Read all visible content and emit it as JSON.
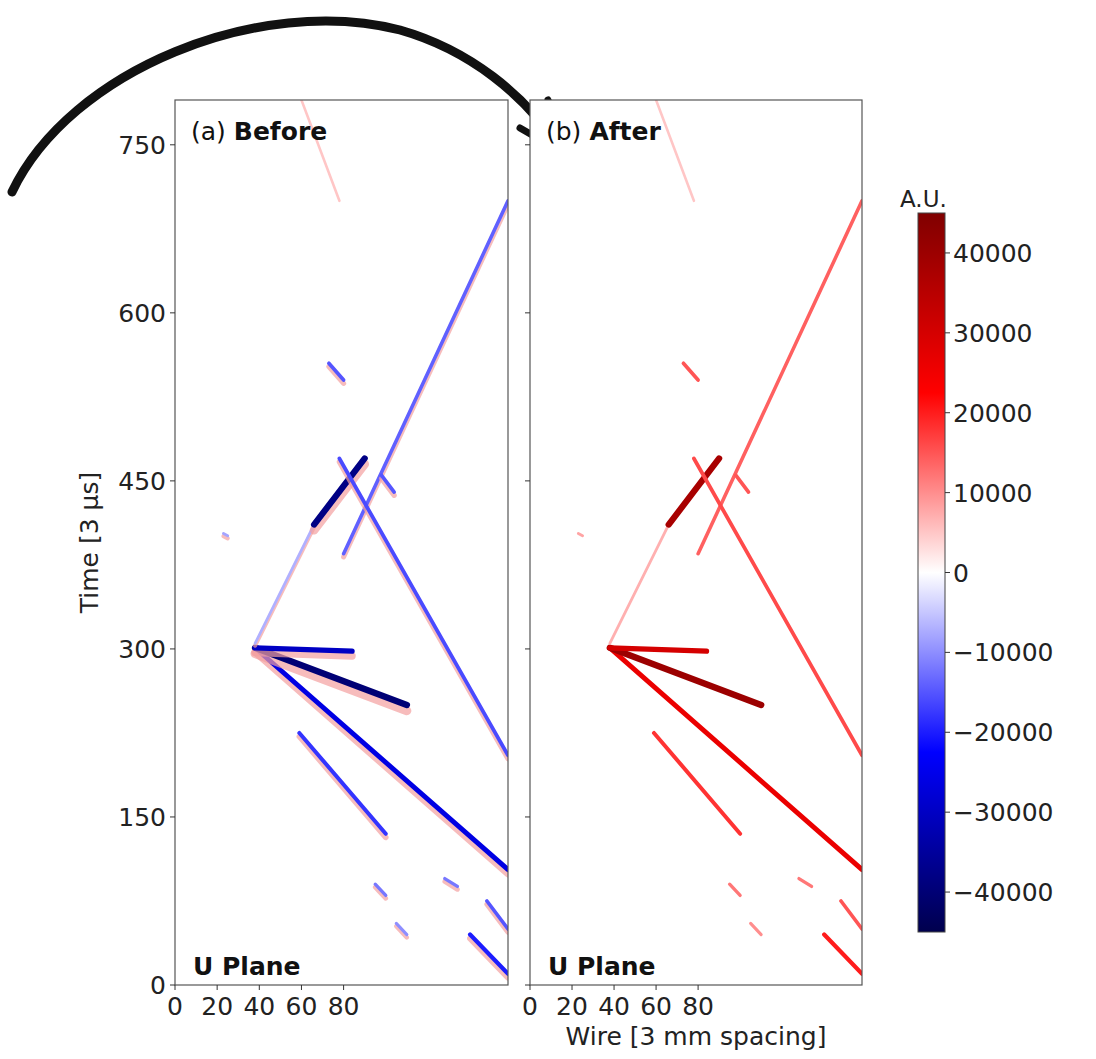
{
  "chart_data": [
    {
      "type": "track_map",
      "panel_label": "(a)",
      "title": "Before",
      "plane_label": "U Plane",
      "ylabel": "Time [3 μs]",
      "xlim": [
        0,
        158
      ],
      "ylim": [
        0,
        790
      ],
      "xticks": [
        0,
        20,
        40,
        60,
        80
      ],
      "yticks": [
        0,
        150,
        300,
        450,
        600,
        750
      ],
      "tracks": [
        {
          "wire": [
            38,
            158
          ],
          "time": [
            301,
            103
          ],
          "charge": -26000
        },
        {
          "wire": [
            38,
            110
          ],
          "time": [
            301,
            250
          ],
          "charge": -40000
        },
        {
          "wire": [
            38,
            84
          ],
          "time": [
            301,
            298
          ],
          "charge": -30000
        },
        {
          "wire": [
            38,
            66
          ],
          "time": [
            305,
            411
          ],
          "charge": -7000
        },
        {
          "wire": [
            66,
            90
          ],
          "time": [
            411,
            470
          ],
          "charge": -38000
        },
        {
          "wire": [
            80,
            158
          ],
          "time": [
            385,
            700
          ],
          "charge": -14000
        },
        {
          "wire": [
            78,
            158
          ],
          "time": [
            470,
            205
          ],
          "charge": -16000
        },
        {
          "wire": [
            59,
            100
          ],
          "time": [
            225,
            135
          ],
          "charge": -18000
        },
        {
          "wire": [
            60,
            78
          ],
          "time": [
            790,
            700
          ],
          "charge": 5000
        },
        {
          "wire": [
            73,
            80
          ],
          "time": [
            555,
            540
          ],
          "charge": -15000
        },
        {
          "wire": [
            98,
            104
          ],
          "time": [
            455,
            440
          ],
          "charge": -15000
        },
        {
          "wire": [
            95,
            100
          ],
          "time": [
            90,
            80
          ],
          "charge": -12000
        },
        {
          "wire": [
            140,
            158
          ],
          "time": [
            45,
            10
          ],
          "charge": -20000
        },
        {
          "wire": [
            148,
            158
          ],
          "time": [
            75,
            50
          ],
          "charge": -15000
        },
        {
          "wire": [
            128,
            134
          ],
          "time": [
            95,
            88
          ],
          "charge": -12000
        },
        {
          "wire": [
            105,
            110
          ],
          "time": [
            55,
            45
          ],
          "charge": -10000
        },
        {
          "wire": [
            23,
            25
          ],
          "time": [
            403,
            401
          ],
          "charge": -8000
        }
      ]
    },
    {
      "type": "track_map",
      "panel_label": "(b)",
      "title": "After",
      "plane_label": "U Plane",
      "xlabel": "Wire [3 mm spacing]",
      "xlim": [
        0,
        158
      ],
      "ylim": [
        0,
        790
      ],
      "xticks": [
        0,
        20,
        40,
        60,
        80
      ],
      "yticks": [
        0,
        150,
        300,
        450,
        600,
        750
      ],
      "tick_labels": "x",
      "tracks": [
        {
          "wire": [
            38,
            158
          ],
          "time": [
            301,
            103
          ],
          "charge": 26000
        },
        {
          "wire": [
            38,
            110
          ],
          "time": [
            301,
            250
          ],
          "charge": 40000
        },
        {
          "wire": [
            38,
            84
          ],
          "time": [
            301,
            298
          ],
          "charge": 30000
        },
        {
          "wire": [
            38,
            66
          ],
          "time": [
            305,
            411
          ],
          "charge": 7000
        },
        {
          "wire": [
            66,
            90
          ],
          "time": [
            411,
            470
          ],
          "charge": 38000
        },
        {
          "wire": [
            80,
            158
          ],
          "time": [
            385,
            700
          ],
          "charge": 14000
        },
        {
          "wire": [
            78,
            158
          ],
          "time": [
            470,
            205
          ],
          "charge": 16000
        },
        {
          "wire": [
            59,
            100
          ],
          "time": [
            225,
            135
          ],
          "charge": 18000
        },
        {
          "wire": [
            60,
            78
          ],
          "time": [
            790,
            700
          ],
          "charge": 5000
        },
        {
          "wire": [
            73,
            80
          ],
          "time": [
            555,
            540
          ],
          "charge": 15000
        },
        {
          "wire": [
            98,
            104
          ],
          "time": [
            455,
            440
          ],
          "charge": 15000
        },
        {
          "wire": [
            95,
            100
          ],
          "time": [
            90,
            80
          ],
          "charge": 12000
        },
        {
          "wire": [
            140,
            158
          ],
          "time": [
            45,
            10
          ],
          "charge": 20000
        },
        {
          "wire": [
            148,
            158
          ],
          "time": [
            75,
            50
          ],
          "charge": 15000
        },
        {
          "wire": [
            128,
            134
          ],
          "time": [
            95,
            88
          ],
          "charge": 12000
        },
        {
          "wire": [
            105,
            110
          ],
          "time": [
            55,
            45
          ],
          "charge": 10000
        },
        {
          "wire": [
            23,
            25
          ],
          "time": [
            403,
            401
          ],
          "charge": 8000
        }
      ],
      "colorbar": {
        "label": "A.U.",
        "range": [
          -45000,
          45000
        ],
        "ticks": [
          {
            "value": -40000,
            "label": "−40000"
          },
          {
            "value": -30000,
            "label": "−30000"
          },
          {
            "value": -20000,
            "label": "−20000"
          },
          {
            "value": -10000,
            "label": "−10000"
          },
          0,
          10000,
          20000,
          30000,
          40000
        ]
      }
    }
  ]
}
